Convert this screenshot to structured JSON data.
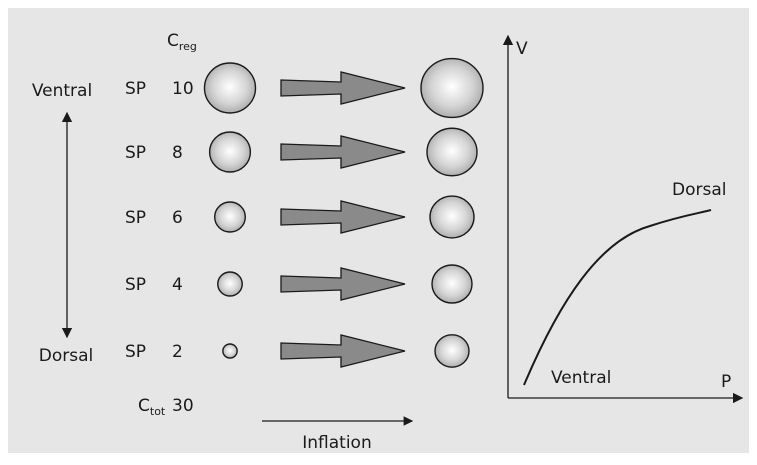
{
  "labels": {
    "top": "Ventral",
    "bottom": "Dorsal"
  },
  "c_reg": {
    "main": "C",
    "sub": "reg"
  },
  "rows": [
    {
      "label": "SP",
      "value": 10
    },
    {
      "label": "SP",
      "value": 8
    },
    {
      "label": "SP",
      "value": 6
    },
    {
      "label": "SP",
      "value": 4
    },
    {
      "label": "SP",
      "value": 2
    }
  ],
  "c_tot": {
    "main": "C",
    "sub": "tot",
    "value": 30
  },
  "inflation": "Inflation",
  "graph": {
    "y_axis": "V",
    "x_axis": "P",
    "curve_top": "Dorsal",
    "curve_bottom": "Ventral"
  }
}
